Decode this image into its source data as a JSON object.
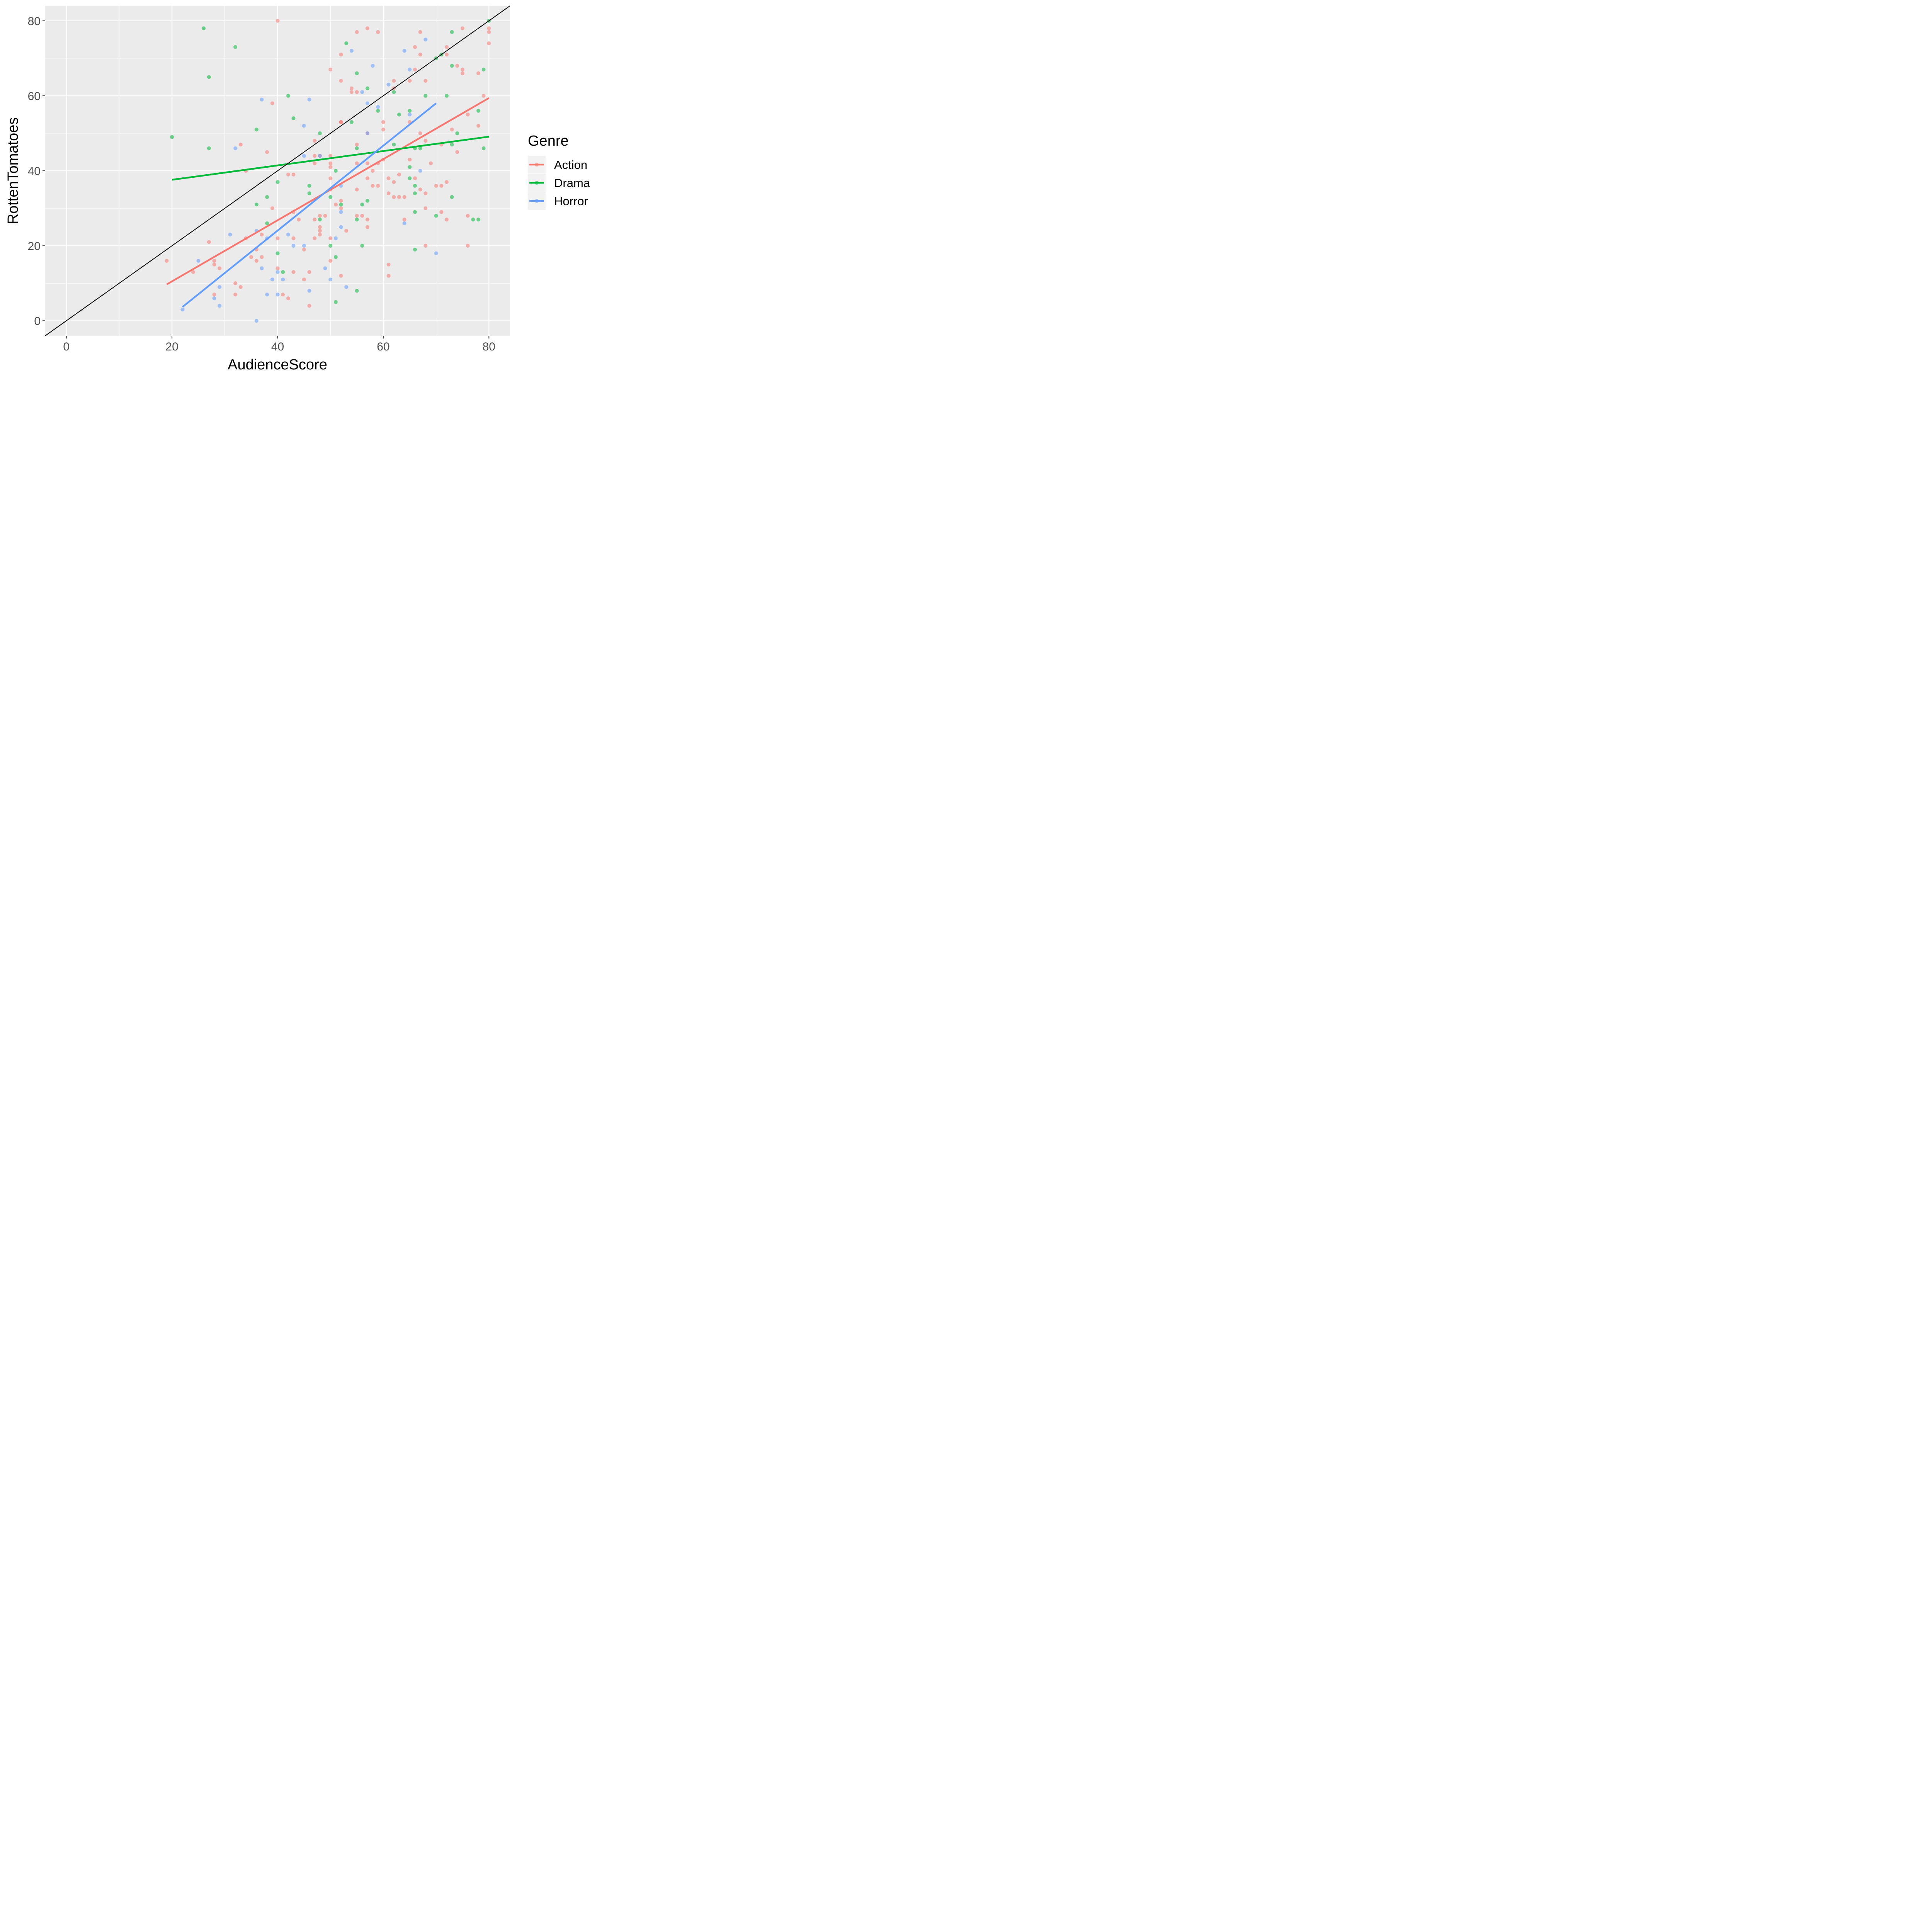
{
  "chart_data": {
    "type": "scatter",
    "xlabel": "AudienceScore",
    "ylabel": "RottenTomatoes",
    "xlim": [
      -4,
      84
    ],
    "ylim": [
      -4,
      84
    ],
    "xticks": [
      "0",
      "20",
      "40",
      "60",
      "80"
    ],
    "yticks": [
      "0",
      "20",
      "40",
      "60",
      "80"
    ],
    "x_tick_values": [
      0,
      20,
      40,
      60,
      80
    ],
    "y_tick_values": [
      0,
      20,
      40,
      60,
      80
    ],
    "grid": true,
    "legend": {
      "title": "Genre",
      "placement": "right",
      "entries": [
        "Action",
        "Drama",
        "Horror"
      ]
    },
    "reference_line": {
      "slope": 1,
      "intercept": 0,
      "color": "#000000"
    },
    "series": [
      {
        "name": "Action",
        "color": "#F8766D",
        "fit": {
          "x": [
            19,
            80
          ],
          "y": [
            9.7,
            59.4
          ]
        },
        "points": [
          [
            19,
            16
          ],
          [
            24,
            13
          ],
          [
            27,
            21
          ],
          [
            28,
            16
          ],
          [
            28,
            15
          ],
          [
            28,
            7
          ],
          [
            29,
            14
          ],
          [
            32,
            10
          ],
          [
            32,
            7
          ],
          [
            33,
            9
          ],
          [
            33,
            47
          ],
          [
            34,
            22
          ],
          [
            34,
            40
          ],
          [
            35,
            17
          ],
          [
            36,
            19
          ],
          [
            36,
            16
          ],
          [
            37,
            23
          ],
          [
            37,
            17
          ],
          [
            38,
            45
          ],
          [
            39,
            30
          ],
          [
            39,
            58
          ],
          [
            40,
            80
          ],
          [
            40,
            22
          ],
          [
            40,
            14
          ],
          [
            41,
            7
          ],
          [
            42,
            39
          ],
          [
            42,
            6
          ],
          [
            43,
            39
          ],
          [
            43,
            29
          ],
          [
            43,
            22
          ],
          [
            43,
            13
          ],
          [
            44,
            27
          ],
          [
            45,
            19
          ],
          [
            45,
            11
          ],
          [
            46,
            13
          ],
          [
            46,
            4
          ],
          [
            47,
            48
          ],
          [
            47,
            44
          ],
          [
            47,
            42
          ],
          [
            47,
            27
          ],
          [
            47,
            22
          ],
          [
            48,
            44
          ],
          [
            48,
            28
          ],
          [
            48,
            25
          ],
          [
            48,
            24
          ],
          [
            48,
            23
          ],
          [
            49,
            28
          ],
          [
            50,
            67
          ],
          [
            50,
            44
          ],
          [
            50,
            42
          ],
          [
            50,
            41
          ],
          [
            50,
            38
          ],
          [
            50,
            35
          ],
          [
            50,
            22
          ],
          [
            50,
            16
          ],
          [
            51,
            31
          ],
          [
            52,
            71
          ],
          [
            52,
            64
          ],
          [
            52,
            53
          ],
          [
            52,
            53
          ],
          [
            52,
            32
          ],
          [
            52,
            30
          ],
          [
            52,
            12
          ],
          [
            53,
            24
          ],
          [
            54,
            62
          ],
          [
            54,
            61
          ],
          [
            55,
            77
          ],
          [
            55,
            61
          ],
          [
            55,
            47
          ],
          [
            55,
            42
          ],
          [
            55,
            35
          ],
          [
            55,
            28
          ],
          [
            56,
            28
          ],
          [
            57,
            78
          ],
          [
            57,
            50
          ],
          [
            57,
            42
          ],
          [
            57,
            38
          ],
          [
            57,
            27
          ],
          [
            57,
            25
          ],
          [
            58,
            40
          ],
          [
            58,
            36
          ],
          [
            59,
            77
          ],
          [
            59,
            42
          ],
          [
            59,
            36
          ],
          [
            60,
            53
          ],
          [
            60,
            51
          ],
          [
            60,
            43
          ],
          [
            61,
            38
          ],
          [
            61,
            34
          ],
          [
            61,
            15
          ],
          [
            61,
            12
          ],
          [
            62,
            64
          ],
          [
            62,
            62
          ],
          [
            62,
            37
          ],
          [
            62,
            33
          ],
          [
            63,
            39
          ],
          [
            63,
            33
          ],
          [
            64,
            33
          ],
          [
            64,
            27
          ],
          [
            65,
            64
          ],
          [
            65,
            53
          ],
          [
            65,
            43
          ],
          [
            66,
            73
          ],
          [
            66,
            67
          ],
          [
            66,
            38
          ],
          [
            67,
            77
          ],
          [
            67,
            71
          ],
          [
            67,
            50
          ],
          [
            67,
            35
          ],
          [
            68,
            64
          ],
          [
            68,
            48
          ],
          [
            68,
            34
          ],
          [
            68,
            30
          ],
          [
            68,
            20
          ],
          [
            69,
            42
          ],
          [
            70,
            36
          ],
          [
            71,
            47
          ],
          [
            71,
            36
          ],
          [
            71,
            29
          ],
          [
            72,
            73
          ],
          [
            72,
            71
          ],
          [
            72,
            37
          ],
          [
            72,
            27
          ],
          [
            73,
            51
          ],
          [
            74,
            68
          ],
          [
            74,
            45
          ],
          [
            75,
            78
          ],
          [
            75,
            67
          ],
          [
            75,
            66
          ],
          [
            76,
            55
          ],
          [
            76,
            28
          ],
          [
            76,
            20
          ],
          [
            78,
            66
          ],
          [
            78,
            52
          ],
          [
            79,
            60
          ],
          [
            80,
            78
          ],
          [
            80,
            77
          ],
          [
            80,
            74
          ]
        ]
      },
      {
        "name": "Drama",
        "color": "#00BA38",
        "fit": {
          "x": [
            20,
            80
          ],
          "y": [
            37.6,
            49.1
          ]
        },
        "points": [
          [
            20,
            49
          ],
          [
            26,
            78
          ],
          [
            27,
            65
          ],
          [
            27,
            46
          ],
          [
            32,
            73
          ],
          [
            36,
            51
          ],
          [
            36,
            31
          ],
          [
            38,
            33
          ],
          [
            38,
            26
          ],
          [
            40,
            37
          ],
          [
            40,
            18
          ],
          [
            41,
            13
          ],
          [
            42,
            60
          ],
          [
            43,
            54
          ],
          [
            46,
            36
          ],
          [
            46,
            34
          ],
          [
            48,
            50
          ],
          [
            48,
            27
          ],
          [
            50,
            33
          ],
          [
            50,
            20
          ],
          [
            51,
            40
          ],
          [
            51,
            17
          ],
          [
            51,
            5
          ],
          [
            52,
            31
          ],
          [
            53,
            74
          ],
          [
            54,
            53
          ],
          [
            55,
            66
          ],
          [
            55,
            46
          ],
          [
            55,
            27
          ],
          [
            55,
            8
          ],
          [
            56,
            31
          ],
          [
            56,
            20
          ],
          [
            57,
            62
          ],
          [
            57,
            32
          ],
          [
            59,
            56
          ],
          [
            62,
            61
          ],
          [
            62,
            47
          ],
          [
            63,
            55
          ],
          [
            65,
            56
          ],
          [
            65,
            41
          ],
          [
            65,
            38
          ],
          [
            66,
            46
          ],
          [
            66,
            36
          ],
          [
            66,
            34
          ],
          [
            66,
            29
          ],
          [
            66,
            19
          ],
          [
            67,
            46
          ],
          [
            68,
            60
          ],
          [
            70,
            70
          ],
          [
            70,
            28
          ],
          [
            71,
            71
          ],
          [
            72,
            60
          ],
          [
            73,
            77
          ],
          [
            73,
            68
          ],
          [
            73,
            47
          ],
          [
            73,
            33
          ],
          [
            74,
            50
          ],
          [
            77,
            27
          ],
          [
            78,
            56
          ],
          [
            78,
            27
          ],
          [
            79,
            67
          ],
          [
            79,
            46
          ],
          [
            80,
            80
          ]
        ]
      },
      {
        "name": "Horror",
        "color": "#619CFF",
        "fit": {
          "x": [
            22,
            70
          ],
          "y": [
            3.7,
            58.0
          ]
        },
        "points": [
          [
            22,
            3
          ],
          [
            25,
            16
          ],
          [
            28,
            6
          ],
          [
            29,
            9
          ],
          [
            29,
            4
          ],
          [
            31,
            23
          ],
          [
            32,
            46
          ],
          [
            36,
            24
          ],
          [
            36,
            0
          ],
          [
            37,
            59
          ],
          [
            37,
            14
          ],
          [
            38,
            22
          ],
          [
            38,
            7
          ],
          [
            39,
            11
          ],
          [
            40,
            13
          ],
          [
            40,
            7
          ],
          [
            41,
            11
          ],
          [
            42,
            23
          ],
          [
            43,
            20
          ],
          [
            45,
            52
          ],
          [
            45,
            44
          ],
          [
            45,
            20
          ],
          [
            46,
            59
          ],
          [
            46,
            8
          ],
          [
            48,
            44
          ],
          [
            49,
            14
          ],
          [
            50,
            11
          ],
          [
            51,
            22
          ],
          [
            52,
            36
          ],
          [
            52,
            29
          ],
          [
            52,
            25
          ],
          [
            53,
            9
          ],
          [
            54,
            72
          ],
          [
            56,
            61
          ],
          [
            57,
            58
          ],
          [
            57,
            50
          ],
          [
            58,
            68
          ],
          [
            59,
            57
          ],
          [
            61,
            63
          ],
          [
            64,
            72
          ],
          [
            64,
            26
          ],
          [
            65,
            67
          ],
          [
            65,
            55
          ],
          [
            67,
            40
          ],
          [
            68,
            75
          ],
          [
            70,
            18
          ]
        ]
      }
    ]
  }
}
